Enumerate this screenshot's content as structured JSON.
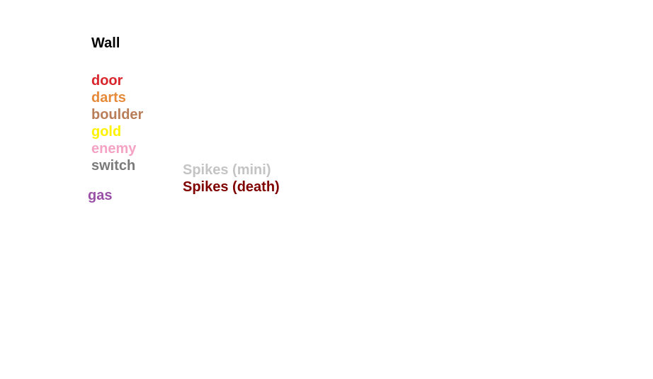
{
  "legend": {
    "wall": {
      "label": "Wall",
      "color": "#000000"
    },
    "door": {
      "label": "door",
      "color": "#d9262c"
    },
    "darts": {
      "label": "darts",
      "color": "#e68a3a"
    },
    "boulder": {
      "label": "boulder",
      "color": "#b97d58"
    },
    "gold": {
      "label": "gold",
      "color": "#fff200"
    },
    "enemy": {
      "label": "enemy",
      "color": "#f4a3c4"
    },
    "switch": {
      "label": "switch",
      "color": "#7a7a7a"
    },
    "gas": {
      "label": "gas",
      "color": "#9a4fa6"
    },
    "spikes_mini": {
      "label": "Spikes (mini)",
      "color": "#c4c4c4"
    },
    "spikes_death": {
      "label": "Spikes (death)",
      "color": "#800000"
    }
  }
}
